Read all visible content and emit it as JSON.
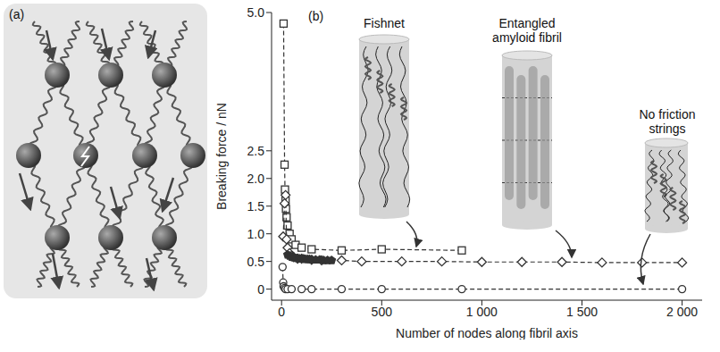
{
  "chart_data": {
    "type": "scatter",
    "panel_label": "(b)",
    "x_label": "Number of nodes along fibril axis",
    "y_label": "Breaking force / nN",
    "xlim": [
      -50,
      2100
    ],
    "xticks": [
      0,
      500,
      {
        "value": 1000,
        "label": "1 000"
      },
      {
        "value": 1500,
        "label": "1 500"
      },
      {
        "value": 2000,
        "label": "2 000"
      }
    ],
    "ylim": [
      -0.2,
      5.0
    ],
    "yticks": [
      0,
      0.5,
      {
        "value": 1,
        "label": "1.0"
      },
      1.5,
      {
        "value": 2,
        "label": "2.0"
      },
      2.5,
      {
        "value": 5,
        "label": "5.0"
      }
    ],
    "grid": false,
    "annotations": [
      "Fishnet",
      "Entangled amyloid fibril",
      "No friction strings"
    ],
    "series": [
      {
        "color": "#333333",
        "marker": "open_square",
        "line_style": "dashed",
        "x": [
          10,
          15,
          17,
          20,
          22,
          25,
          30,
          40,
          50,
          70,
          100,
          150,
          300,
          500,
          900
        ],
        "values": [
          4.8,
          2.25,
          1.8,
          1.6,
          1.45,
          1.3,
          1.15,
          1.0,
          0.9,
          0.8,
          0.75,
          0.72,
          0.7,
          0.72,
          0.7
        ]
      },
      {
        "color": "#333333",
        "marker": "open_diamond",
        "line_style": "dashed",
        "x": [
          8,
          15,
          20,
          25,
          30,
          40,
          50,
          60,
          80,
          100,
          150,
          200,
          300,
          400,
          600,
          800,
          1000,
          1200,
          1400,
          1600,
          1800,
          2000
        ],
        "values": [
          0.95,
          1.55,
          1.7,
          0.9,
          0.75,
          0.65,
          0.6,
          0.58,
          0.55,
          0.55,
          0.53,
          0.52,
          0.52,
          0.5,
          0.5,
          0.5,
          0.49,
          0.49,
          0.49,
          0.48,
          0.48,
          0.48
        ]
      },
      {
        "color": "#333333",
        "marker": "filled_pentagon",
        "line_style": "none",
        "x": [
          30,
          40,
          50,
          60,
          70,
          80,
          90,
          100,
          110,
          120,
          130,
          140,
          150,
          170,
          190,
          210,
          230,
          250
        ],
        "values": [
          0.62,
          0.6,
          0.58,
          0.57,
          0.56,
          0.56,
          0.55,
          0.55,
          0.55,
          0.54,
          0.54,
          0.54,
          0.53,
          0.53,
          0.53,
          0.52,
          0.52,
          0.52
        ]
      },
      {
        "color": "#333333",
        "marker": "open_circle",
        "line_style": "dashed",
        "x": [
          5,
          8,
          10,
          15,
          20,
          30,
          50,
          100,
          150,
          300,
          500,
          900,
          2000
        ],
        "values": [
          0.4,
          0.12,
          0.05,
          0.02,
          0,
          0,
          0,
          0,
          0,
          0,
          0,
          0,
          0
        ]
      }
    ]
  },
  "diagram": {
    "panel_label": "(a)"
  }
}
